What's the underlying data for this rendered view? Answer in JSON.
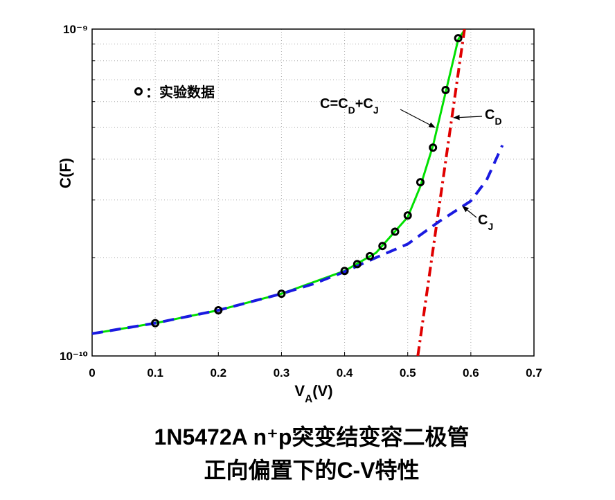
{
  "chart_data": {
    "type": "line",
    "title": [
      "1N5472A n⁺p突变结变容二极管",
      "正向偏置下的C-V特性"
    ],
    "xlabel": [
      {
        "text": "V"
      },
      {
        "text": "A",
        "sub": true
      },
      {
        "text": "(V)"
      }
    ],
    "ylabel": "C(F)",
    "xlim": [
      0,
      0.7
    ],
    "xticks": [
      0,
      0.1,
      0.2,
      0.3,
      0.4,
      0.5,
      0.6,
      0.7
    ],
    "ylim": [
      1e-10,
      1e-09
    ],
    "ylog": true,
    "yticks": [
      {
        "value": 1e-10,
        "label": "10⁻¹⁰"
      },
      {
        "value": 1e-09,
        "label": "10⁻⁹"
      }
    ],
    "yminorticks": [
      2e-10,
      3e-10,
      4e-10,
      5e-10,
      6e-10,
      7e-10,
      8e-10,
      9e-10
    ],
    "grid": true,
    "series": [
      {
        "color": "#00e000",
        "style": "solid",
        "x": [
          0,
          0.1,
          0.2,
          0.3,
          0.4,
          0.45,
          0.5,
          0.52,
          0.54,
          0.56,
          0.58,
          0.591
        ],
        "values": [
          1.17e-10,
          1.26e-10,
          1.38e-10,
          1.55e-10,
          1.82e-10,
          2.07e-10,
          2.66e-10,
          3.3e-10,
          4.4e-10,
          6.4e-10,
          9.3e-10,
          1e-09
        ]
      },
      {
        "color": "#e00000",
        "style": "dashdot",
        "x": [
          0.516,
          0.59
        ],
        "values": [
          1e-10,
          1e-09
        ]
      },
      {
        "color": "#1a1ae0",
        "style": "dashed",
        "x": [
          0,
          0.1,
          0.2,
          0.3,
          0.35,
          0.4,
          0.45,
          0.5,
          0.55,
          0.6,
          0.625,
          0.65
        ],
        "values": [
          1.17e-10,
          1.26e-10,
          1.38e-10,
          1.55e-10,
          1.66e-10,
          1.81e-10,
          2e-10,
          2.2e-10,
          2.58e-10,
          2.98e-10,
          3.45e-10,
          4.41e-10
        ]
      },
      {
        "name": "：实验数据",
        "color": "#000000",
        "style": "markers",
        "x": [
          0.1,
          0.2,
          0.3,
          0.4,
          0.42,
          0.44,
          0.46,
          0.48,
          0.5,
          0.52,
          0.54,
          0.56,
          0.58
        ],
        "values": [
          1.26e-10,
          1.38e-10,
          1.55e-10,
          1.82e-10,
          1.91e-10,
          2.02e-10,
          2.17e-10,
          2.4e-10,
          2.69e-10,
          3.4e-10,
          4.34e-10,
          6.51e-10,
          9.38e-10
        ]
      }
    ],
    "annotations": [
      {
        "parts": [
          {
            "text": "C=C"
          },
          {
            "text": "D",
            "sub": true
          },
          {
            "text": "+C"
          },
          {
            "text": "J",
            "sub": true
          }
        ]
      },
      {
        "parts": [
          {
            "text": "C"
          },
          {
            "text": "D",
            "sub": true
          }
        ]
      },
      {
        "parts": [
          {
            "text": "C"
          },
          {
            "text": "J",
            "sub": true
          }
        ]
      }
    ]
  }
}
